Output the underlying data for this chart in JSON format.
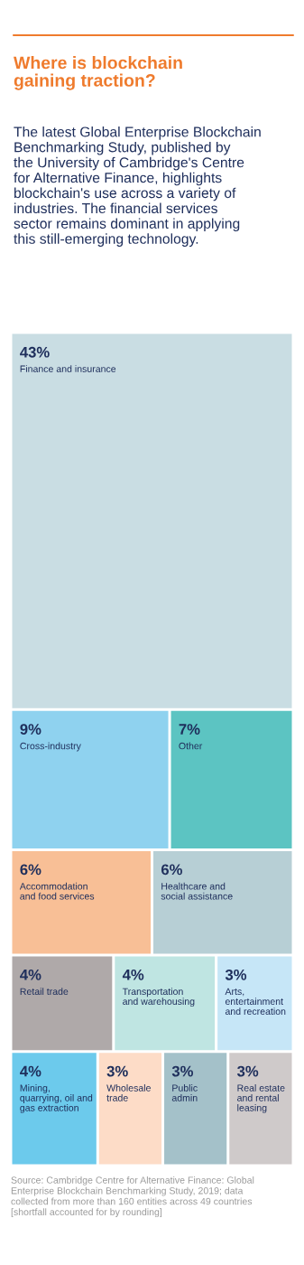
{
  "chart_data": {
    "type": "other",
    "title": "Where is blockchain\ngaining traction?",
    "subtitle": "The latest Global Enterprise Blockchain\nBenchmarking Study, published by\nthe University of Cambridge's Centre\nfor Alternative Finance, highlights\nblockchain's use across a variety of\nindustries. The financial services\nsector remains dominant in applying\nthis still-emerging technology.",
    "categories": [
      "Finance and insurance",
      "Cross-industry",
      "Other",
      "Accommodation\nand food services",
      "Healthcare and\nsocial assistance",
      "Retail trade",
      "Transportation\nand warehousing",
      "Arts,\nentertainment\nand recreation",
      "Mining,\nquarrying, oil and\ngas extraction",
      "Wholesale\ntrade",
      "Public\nadmin",
      "Real estate\nand rental\nleasing"
    ],
    "values": [
      43,
      9,
      7,
      6,
      6,
      4,
      4,
      3,
      4,
      3,
      3,
      3
    ],
    "value_labels": [
      "43%",
      "9%",
      "7%",
      "6%",
      "6%",
      "4%",
      "4%",
      "3%",
      "4%",
      "3%",
      "3%",
      "3%"
    ],
    "colors": [
      "#c9dde3",
      "#8fd2ef",
      "#5cc4c2",
      "#f8bf96",
      "#b7cfd5",
      "#afa9a9",
      "#bfe5e2",
      "#c6e6f7",
      "#6ccaec",
      "#fddcc7",
      "#a4c1c9",
      "#cfcaca"
    ],
    "annotations": [
      "Source: Cambridge Centre for Alternative Finance: Global\nEnterprise Blockchain Benchmarking Study, 2019; data\ncollected from more than 160 entities across 49 countries\n[shortfall accounted for by rounding]"
    ]
  }
}
